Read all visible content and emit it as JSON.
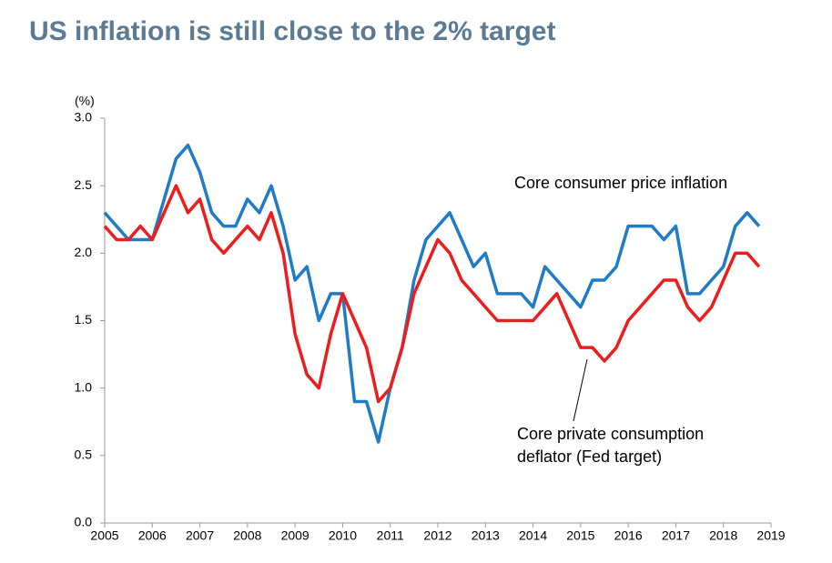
{
  "chart_data": {
    "type": "line",
    "title": "US inflation is still close to the 2% target",
    "y_label": "(%)",
    "x": [
      2005,
      2005.25,
      2005.5,
      2005.75,
      2006,
      2006.25,
      2006.5,
      2006.75,
      2007,
      2007.25,
      2007.5,
      2007.75,
      2008,
      2008.25,
      2008.5,
      2008.75,
      2009,
      2009.25,
      2009.5,
      2009.75,
      2010,
      2010.25,
      2010.5,
      2010.75,
      2011,
      2011.25,
      2011.5,
      2011.75,
      2012,
      2012.25,
      2012.5,
      2012.75,
      2013,
      2013.25,
      2013.5,
      2013.75,
      2014,
      2014.25,
      2014.5,
      2014.75,
      2015,
      2015.25,
      2015.5,
      2015.75,
      2016,
      2016.25,
      2016.5,
      2016.75,
      2017,
      2017.25,
      2017.5,
      2017.75,
      2018,
      2018.25,
      2018.5,
      2018.75
    ],
    "series": [
      {
        "name": "Core consumer price inflation",
        "color": "#1f7bc6",
        "values": [
          2.3,
          2.2,
          2.1,
          2.1,
          2.1,
          2.4,
          2.7,
          2.8,
          2.6,
          2.3,
          2.2,
          2.2,
          2.4,
          2.3,
          2.5,
          2.2,
          1.8,
          1.9,
          1.5,
          1.7,
          1.7,
          0.9,
          0.9,
          0.6,
          1.0,
          1.3,
          1.8,
          2.1,
          2.2,
          2.3,
          2.1,
          1.9,
          2.0,
          1.7,
          1.7,
          1.7,
          1.6,
          1.9,
          1.8,
          1.7,
          1.6,
          1.8,
          1.8,
          1.9,
          2.2,
          2.2,
          2.2,
          2.1,
          2.2,
          1.7,
          1.7,
          1.8,
          1.9,
          2.2,
          2.3,
          2.2
        ]
      },
      {
        "name": "Core private consumption deflator (Fed target)",
        "color": "#ee1c1c",
        "values": [
          2.2,
          2.1,
          2.1,
          2.2,
          2.1,
          2.3,
          2.5,
          2.3,
          2.4,
          2.1,
          2.0,
          2.1,
          2.2,
          2.1,
          2.3,
          2.0,
          1.4,
          1.1,
          1.0,
          1.4,
          1.7,
          1.5,
          1.3,
          0.9,
          1.0,
          1.3,
          1.7,
          1.9,
          2.1,
          2.0,
          1.8,
          1.7,
          1.6,
          1.5,
          1.5,
          1.5,
          1.5,
          1.6,
          1.7,
          1.5,
          1.3,
          1.3,
          1.2,
          1.3,
          1.5,
          1.6,
          1.7,
          1.8,
          1.8,
          1.6,
          1.5,
          1.6,
          1.8,
          2.0,
          2.0,
          1.9
        ]
      }
    ],
    "annotations": [
      "Core consumer price inflation",
      "Core private consumption deflator (Fed target)"
    ],
    "xlim": [
      2005,
      2019
    ],
    "xticks": [
      2005,
      2006,
      2007,
      2008,
      2009,
      2010,
      2011,
      2012,
      2013,
      2014,
      2015,
      2016,
      2017,
      2018,
      2019
    ],
    "ylim": [
      0,
      3
    ],
    "yticks": [
      {
        "value": 0,
        "label": "0.0"
      },
      0.5,
      {
        "value": 1,
        "label": "1.0"
      },
      1.5,
      {
        "value": 2,
        "label": "2.0"
      },
      2.5,
      {
        "value": 3,
        "label": "3.0"
      }
    ],
    "grid": false
  }
}
